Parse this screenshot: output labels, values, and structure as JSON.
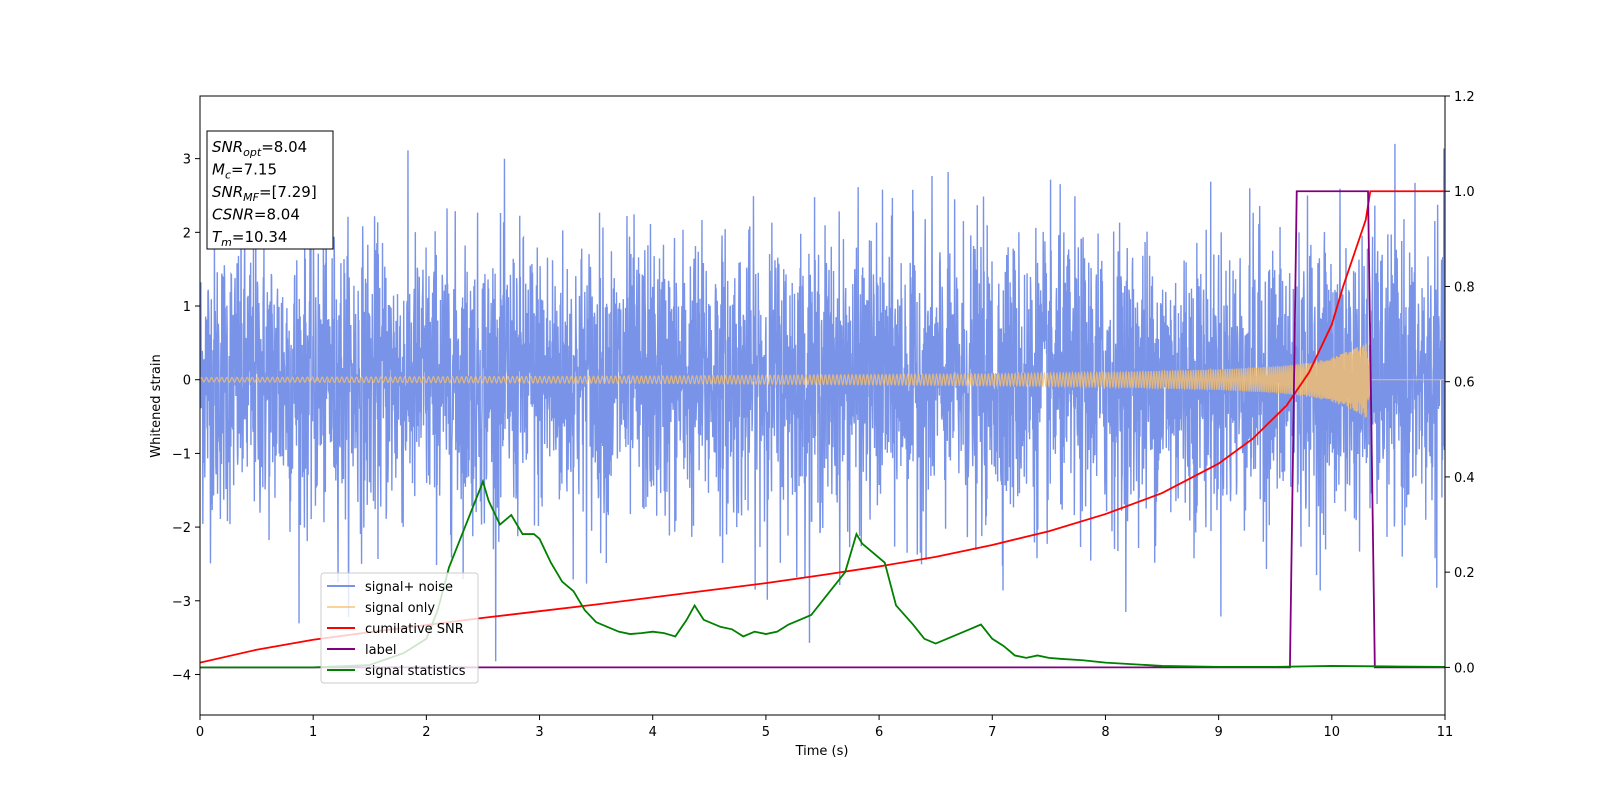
{
  "chart_data": {
    "type": "line",
    "title": "",
    "xlabel": "Time (s)",
    "ylabel": "Whitened strain",
    "xlim": [
      0,
      11
    ],
    "ylim": [
      -4.55,
      3.85
    ],
    "y2lim": [
      -0.1,
      1.2
    ],
    "grid": false,
    "x_ticks": [
      0,
      1,
      2,
      3,
      4,
      5,
      6,
      7,
      8,
      9,
      10,
      11
    ],
    "y_ticks": [
      -4,
      -3,
      -2,
      -1,
      0,
      1,
      2,
      3
    ],
    "y2_ticks": [
      0.0,
      0.2,
      0.4,
      0.6,
      0.8,
      1.0,
      1.2
    ],
    "x_tick_labels": [
      "0",
      "1",
      "2",
      "3",
      "4",
      "5",
      "6",
      "7",
      "8",
      "9",
      "10",
      "11"
    ],
    "y_tick_labels": [
      "−4",
      "−3",
      "−2",
      "−1",
      "0",
      "1",
      "2",
      "3"
    ],
    "y2_tick_labels": [
      "0.0",
      "0.2",
      "0.4",
      "0.6",
      "0.8",
      "1.0",
      "1.2"
    ],
    "legend_position": "lower-left",
    "stats": [
      {
        "base": "SNR",
        "sub": "opt",
        "value": "=8.04"
      },
      {
        "base": "M",
        "sub": "c",
        "value": "=7.15"
      },
      {
        "base": "SNR",
        "sub": "MF",
        "value": "=[7.29]"
      },
      {
        "base": "CSNR",
        "sub": "",
        "value": "=8.04"
      },
      {
        "base": "T",
        "sub": "m",
        "value": "=10.34"
      }
    ],
    "series": [
      {
        "name": "signal+ noise",
        "axis": "left",
        "color": "#7893e8",
        "kind": "noise",
        "std": 0.95,
        "x_range": [
          0,
          11
        ]
      },
      {
        "name": "signal only",
        "axis": "left",
        "color": "#f7c16b",
        "kind": "chirp",
        "merger_time": 10.34,
        "amplitude_envelope": {
          "x": [
            0,
            1,
            2,
            3,
            4,
            5,
            6,
            7,
            8,
            9,
            9.5,
            9.8,
            10.0,
            10.2,
            10.3,
            10.34
          ],
          "y": [
            0.03,
            0.035,
            0.04,
            0.045,
            0.05,
            0.06,
            0.07,
            0.08,
            0.1,
            0.14,
            0.18,
            0.23,
            0.3,
            0.42,
            0.52,
            0.55
          ]
        }
      },
      {
        "name": "cumilative SNR",
        "axis": "right",
        "color": "#ff0000",
        "x": [
          0,
          0.5,
          1,
          1.5,
          2,
          2.5,
          3,
          3.5,
          4,
          4.5,
          5,
          5.5,
          6,
          6.5,
          7,
          7.5,
          8,
          8.5,
          9,
          9.3,
          9.6,
          9.8,
          10.0,
          10.1,
          10.2,
          10.3,
          10.34,
          10.4,
          11
        ],
        "y": [
          0.01,
          0.037,
          0.058,
          0.074,
          0.089,
          0.104,
          0.118,
          0.132,
          0.147,
          0.162,
          0.177,
          0.194,
          0.212,
          0.232,
          0.257,
          0.286,
          0.322,
          0.366,
          0.428,
          0.48,
          0.55,
          0.62,
          0.72,
          0.8,
          0.87,
          0.94,
          1.0,
          1.0,
          1.0
        ]
      },
      {
        "name": "label",
        "axis": "right",
        "color": "#800080",
        "x": [
          0,
          9.63,
          9.69,
          10.32,
          10.38,
          11
        ],
        "y": [
          0.0,
          0.0,
          1.0,
          1.0,
          0.0,
          0.0
        ]
      },
      {
        "name": "signal statistics",
        "axis": "right",
        "color": "#008000",
        "x": [
          0,
          0.5,
          1,
          1.5,
          1.8,
          2.0,
          2.1,
          2.2,
          2.3,
          2.4,
          2.5,
          2.55,
          2.65,
          2.75,
          2.85,
          2.95,
          3.0,
          3.1,
          3.2,
          3.3,
          3.4,
          3.5,
          3.6,
          3.7,
          3.8,
          3.9,
          4.0,
          4.1,
          4.2,
          4.3,
          4.37,
          4.45,
          4.6,
          4.7,
          4.8,
          4.9,
          5.0,
          5.1,
          5.2,
          5.3,
          5.4,
          5.5,
          5.6,
          5.7,
          5.8,
          5.85,
          5.95,
          6.05,
          6.15,
          6.3,
          6.4,
          6.5,
          6.6,
          6.7,
          6.8,
          6.9,
          7.0,
          7.1,
          7.2,
          7.3,
          7.4,
          7.5,
          7.6,
          7.8,
          8.0,
          8.5,
          9.0,
          9.5,
          10.0,
          10.5,
          11
        ],
        "y": [
          0.0,
          0.0,
          0.0,
          0.005,
          0.03,
          0.06,
          0.12,
          0.21,
          0.27,
          0.33,
          0.39,
          0.35,
          0.3,
          0.32,
          0.28,
          0.28,
          0.27,
          0.22,
          0.18,
          0.16,
          0.12,
          0.095,
          0.085,
          0.075,
          0.07,
          0.072,
          0.075,
          0.072,
          0.065,
          0.1,
          0.13,
          0.1,
          0.085,
          0.08,
          0.065,
          0.075,
          0.07,
          0.075,
          0.09,
          0.1,
          0.11,
          0.14,
          0.17,
          0.2,
          0.28,
          0.26,
          0.24,
          0.22,
          0.13,
          0.09,
          0.06,
          0.05,
          0.06,
          0.07,
          0.08,
          0.09,
          0.06,
          0.045,
          0.025,
          0.02,
          0.025,
          0.02,
          0.018,
          0.015,
          0.01,
          0.003,
          0.001,
          0.001,
          0.003,
          0.002,
          0.001
        ]
      }
    ]
  }
}
